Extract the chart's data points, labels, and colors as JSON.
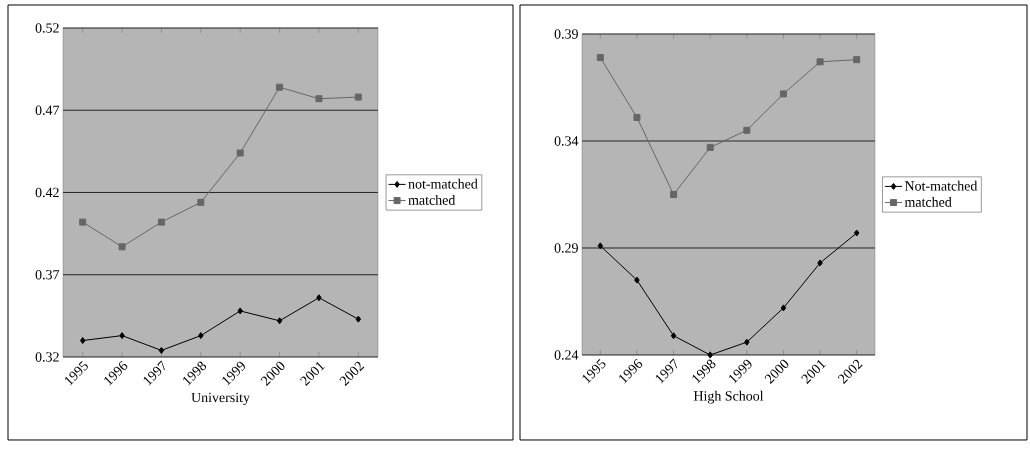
{
  "chart_data": [
    {
      "type": "line",
      "xlabel": "University",
      "categories": [
        "1995",
        "1996",
        "1997",
        "1998",
        "1999",
        "2000",
        "2001",
        "2002"
      ],
      "series": [
        {
          "name": "not-matched",
          "color": "#000000",
          "marker": "diamond",
          "values": [
            0.33,
            0.333,
            0.324,
            0.333,
            0.348,
            0.342,
            0.356,
            0.343
          ]
        },
        {
          "name": "matched",
          "color": "#666666",
          "marker": "square",
          "values": [
            0.402,
            0.387,
            0.402,
            0.414,
            0.444,
            0.484,
            0.477,
            0.478
          ]
        }
      ],
      "ylim": [
        0.32,
        0.52
      ],
      "yticks": [
        0.32,
        0.37,
        0.42,
        0.47,
        0.52
      ],
      "grid": "y",
      "legend": "right"
    },
    {
      "type": "line",
      "xlabel": "High School",
      "categories": [
        "1995",
        "1996",
        "1997",
        "1998",
        "1999",
        "2000",
        "2001",
        "2002"
      ],
      "series": [
        {
          "name": "Not-matched",
          "color": "#000000",
          "marker": "diamond",
          "values": [
            0.291,
            0.275,
            0.249,
            0.24,
            0.246,
            0.262,
            0.283,
            0.297
          ]
        },
        {
          "name": "matched",
          "color": "#666666",
          "marker": "square",
          "values": [
            0.379,
            0.351,
            0.315,
            0.337,
            0.345,
            0.362,
            0.377,
            0.378
          ]
        }
      ],
      "ylim": [
        0.24,
        0.39
      ],
      "yticks": [
        0.24,
        0.29,
        0.34,
        0.39
      ],
      "grid": "y",
      "legend": "right"
    }
  ]
}
